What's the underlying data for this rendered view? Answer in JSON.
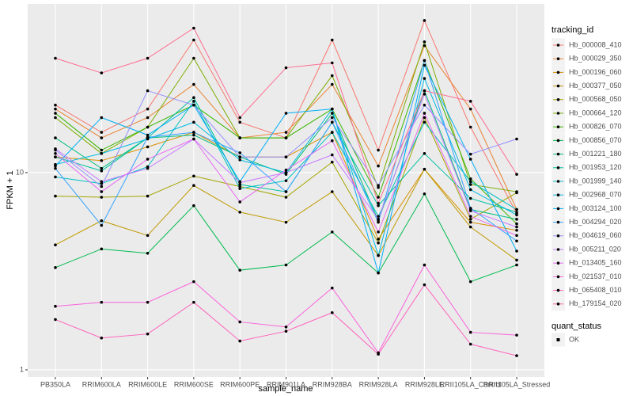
{
  "chart_data": {
    "type": "line",
    "x_label": "sample_name",
    "y_label": "FPKM + 1",
    "log_y": true,
    "grid": true,
    "legend_title": "tracking_id",
    "point_legend": {
      "title": "quant_status",
      "labels": [
        "OK"
      ]
    },
    "ylim": [
      0.92,
      71.6
    ],
    "yticks": [
      1,
      10
    ],
    "categories": [
      "PB350LA",
      "RRIM600LA",
      "RRIM600LE",
      "RRIM600SE",
      "RRIM600PE",
      "RRIM901LA",
      "RRIM928BA",
      "RRIM928LA",
      "RRIM928LE",
      "RRII105LA_Control",
      "RRII105LA_Stressed"
    ],
    "series": [
      {
        "name": "Hb_000008_410",
        "color": "#F8766D",
        "values": [
          22,
          16,
          21,
          47,
          18,
          15,
          47,
          13,
          59,
          17,
          6.2
        ]
      },
      {
        "name": "Hb_000029_350",
        "color": "#EA8331",
        "values": [
          21,
          15,
          19,
          28,
          15,
          16,
          28,
          10.8,
          44,
          21,
          6.5
        ]
      },
      {
        "name": "Hb_000196_060",
        "color": "#D89000",
        "values": [
          12,
          11.5,
          13.5,
          16,
          12,
          12,
          16,
          4.6,
          10.4,
          5.6,
          5.1
        ]
      },
      {
        "name": "Hb_000377_050",
        "color": "#C09B00",
        "values": [
          4.3,
          5.7,
          4.8,
          8.6,
          6.3,
          5.6,
          8.0,
          3.8,
          10.4,
          5.3,
          3.6
        ]
      },
      {
        "name": "Hb_000568_050",
        "color": "#A3A500",
        "values": [
          7.6,
          7.5,
          7.6,
          9.6,
          8.5,
          7.5,
          11.3,
          4.4,
          19,
          5.8,
          7.9
        ]
      },
      {
        "name": "Hb_000664_120",
        "color": "#7CAE00",
        "values": [
          19,
          12.5,
          17,
          38,
          15,
          15,
          31,
          8.4,
          46,
          8.7,
          8
        ]
      },
      {
        "name": "Hb_000826_070",
        "color": "#39B600",
        "values": [
          20,
          13,
          17,
          22,
          15,
          15,
          21,
          7.5,
          37,
          9.3,
          5.5
        ]
      },
      {
        "name": "Hb_000856_070",
        "color": "#00BB4E",
        "values": [
          3.3,
          4.1,
          3.9,
          6.8,
          3.2,
          3.4,
          5.0,
          3.1,
          7.8,
          2.8,
          3.4
        ]
      },
      {
        "name": "Hb_001221_180",
        "color": "#00BF7D",
        "values": [
          15,
          10.5,
          15,
          15.5,
          12,
          9.8,
          20,
          5.7,
          26,
          6.5,
          5.8
        ]
      },
      {
        "name": "Hb_001953_120",
        "color": "#00C1A3",
        "values": [
          12,
          10.2,
          15,
          24,
          8.7,
          8.0,
          18,
          6.8,
          12.5,
          7.4,
          6.3
        ]
      },
      {
        "name": "Hb_001999_140",
        "color": "#00BFC4",
        "values": [
          9.5,
          8.8,
          10.7,
          23,
          8.3,
          9.1,
          16,
          6.0,
          18,
          9.0,
          6.5
        ]
      },
      {
        "name": "Hb_002968_070",
        "color": "#00BAE0",
        "values": [
          11,
          12.5,
          14.8,
          18,
          11.6,
          10,
          21,
          3.8,
          30,
          8.2,
          6.1
        ]
      },
      {
        "name": "Hb_003124_100",
        "color": "#00B0F6",
        "values": [
          10.8,
          19,
          15.5,
          22,
          9.0,
          20,
          21,
          3.1,
          35,
          11.7,
          4.0
        ]
      },
      {
        "name": "Hb_004294_020",
        "color": "#35A2FF",
        "values": [
          10.5,
          5.4,
          15.1,
          16,
          12.6,
          8,
          18,
          5.6,
          37,
          6.6,
          4.5
        ]
      },
      {
        "name": "Hb_004619_060",
        "color": "#9590FF",
        "values": [
          13,
          8.5,
          26,
          22,
          12,
          12,
          19,
          8.6,
          22,
          12.4,
          14.8
        ]
      },
      {
        "name": "Hb_005211_020",
        "color": "#C77CFF",
        "values": [
          13.2,
          9,
          10.5,
          14.8,
          8.9,
          10,
          12.3,
          5.8,
          25,
          6.4,
          5.3
        ]
      },
      {
        "name": "Hb_013405_160",
        "color": "#E76BF3",
        "values": [
          12.5,
          8,
          11.7,
          14.8,
          7.1,
          10.3,
          14.5,
          5.0,
          20,
          6,
          4.8
        ]
      },
      {
        "name": "Hb_021537_010",
        "color": "#FA62DB",
        "values": [
          2.1,
          2.2,
          2.2,
          2.8,
          1.75,
          1.65,
          2.6,
          1.22,
          3.4,
          1.55,
          1.5
        ]
      },
      {
        "name": "Hb_065408_010",
        "color": "#FF62BC",
        "values": [
          1.8,
          1.45,
          1.52,
          2.2,
          1.4,
          1.57,
          1.95,
          1.2,
          2.7,
          1.35,
          1.18
        ]
      },
      {
        "name": "Hb_179154_020",
        "color": "#FF6C91",
        "values": [
          38,
          32,
          38,
          54,
          19,
          34,
          36,
          7.0,
          26,
          23,
          9.8
        ]
      }
    ]
  }
}
